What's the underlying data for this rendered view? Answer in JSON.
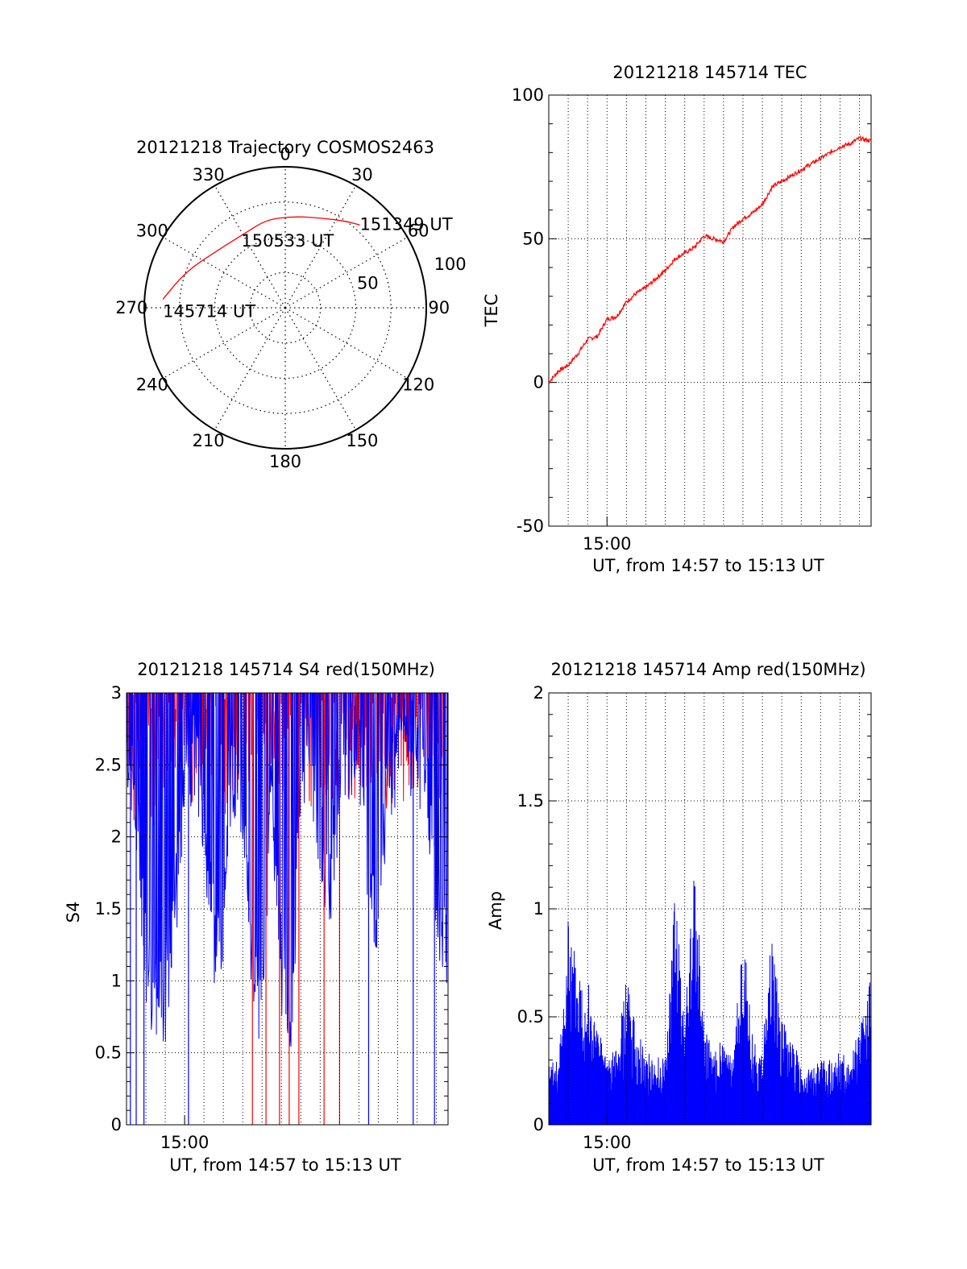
{
  "chart_data": [
    {
      "id": "trajectory",
      "type": "polar",
      "title": "20121218 Trajectory COSMOS2463",
      "azimuth_labels": [
        "0",
        "30",
        "60",
        "90",
        "120",
        "150",
        "180",
        "210",
        "240",
        "270",
        "300",
        "330"
      ],
      "radius_labels": [
        "50",
        "100"
      ],
      "rlim": [
        0,
        100
      ],
      "grid": true,
      "track_color": "#ff0000",
      "track": [
        {
          "az": 274,
          "r": 87
        },
        {
          "az": 290,
          "r": 75
        },
        {
          "az": 310,
          "r": 63
        },
        {
          "az": 330,
          "r": 60
        },
        {
          "az": 348,
          "r": 64
        },
        {
          "az": 5,
          "r": 65
        },
        {
          "az": 20,
          "r": 68
        },
        {
          "az": 35,
          "r": 75
        },
        {
          "az": 42,
          "r": 79
        }
      ],
      "annotations": [
        {
          "text": "151349 UT",
          "az": 42,
          "r": 79
        },
        {
          "text": "150533 UT",
          "az": 2,
          "r": 47
        },
        {
          "text": "145714 UT",
          "az": 274,
          "r": 87
        }
      ]
    },
    {
      "id": "tec",
      "type": "line",
      "title": "20121218 145714 TEC",
      "ylabel": "TEC",
      "xlabel": "UT, from 14:57 to 15:13 UT",
      "x_tick_labels": [
        {
          "t": 3,
          "label": "15:00"
        }
      ],
      "xlim": [
        0,
        16.6
      ],
      "ylim": [
        -50,
        100
      ],
      "y_ticks": [
        "-50",
        "0",
        "50",
        "100"
      ],
      "color": "#ff0000",
      "grid": true,
      "series": [
        {
          "x": [
            0,
            0.5,
            1,
            1.5,
            2,
            2.5,
            3,
            3.5,
            4,
            4.5,
            5,
            5.5,
            6,
            6.5,
            7,
            7.5,
            8,
            8.5,
            9,
            9.5,
            10,
            10.5,
            11,
            11.5,
            12,
            12.5,
            13,
            13.5,
            14,
            14.5,
            15,
            15.5,
            16,
            16.6
          ],
          "y": [
            0,
            4,
            6,
            10,
            15,
            16,
            22,
            23,
            28,
            31,
            33,
            36,
            39,
            43,
            45,
            47,
            51,
            50,
            49,
            54,
            57,
            59,
            62,
            68,
            70,
            72,
            74,
            76,
            78,
            80,
            82,
            83,
            85,
            84
          ]
        }
      ]
    },
    {
      "id": "s4",
      "type": "line",
      "title": "20121218 145714 S4 red(150MHz)",
      "ylabel": "S4",
      "xlabel": "UT, from 14:57 to 15:13 UT",
      "x_tick_labels": [
        {
          "t": 3,
          "label": "15:00"
        }
      ],
      "xlim": [
        0,
        16.6
      ],
      "ylim": [
        0,
        3
      ],
      "y_ticks": [
        "0",
        "0.5",
        "1",
        "1.5",
        "2",
        "2.5",
        "3"
      ],
      "grid": true,
      "series": [
        {
          "name": "",
          "color": "#0000ff",
          "x": [
            0,
            0.5,
            1,
            1.5,
            2,
            2.5,
            3,
            3.5,
            4,
            4.5,
            5,
            5.5,
            6,
            6.5,
            7,
            7.5,
            8,
            8.5,
            9,
            9.5,
            10,
            10.5,
            11,
            11.5,
            12,
            12.5,
            13,
            13.5,
            14,
            14.5,
            15,
            15.5,
            16,
            16.6
          ],
          "y": [
            2.7,
            2.3,
            1.1,
            0.9,
            0.85,
            1.5,
            2.4,
            2.6,
            2.1,
            1.3,
            1.4,
            2.5,
            2.2,
            1.2,
            0.7,
            2.3,
            1.1,
            0.75,
            2.5,
            2.6,
            2.0,
            1.6,
            2.4,
            2.6,
            2.7,
            1.7,
            1.5,
            2.4,
            2.6,
            2.7,
            2.5,
            2.4,
            1.6,
            1.1
          ]
        },
        {
          "name": "",
          "color": "#ff0000",
          "x": [
            0,
            0.5,
            1,
            1.5,
            2,
            2.5,
            3,
            3.5,
            4,
            4.5,
            5,
            5.5,
            6,
            6.5,
            7,
            7.5,
            8,
            8.5,
            9,
            9.5,
            10,
            10.5,
            11,
            11.5,
            12,
            12.5,
            13,
            13.5,
            14,
            14.5,
            15,
            15.5,
            16,
            16.6
          ],
          "y": [
            2.9,
            2.5,
            2.7,
            2.6,
            2.8,
            2.9,
            2.7,
            2.8,
            2.7,
            2.9,
            2.6,
            2.8,
            2.7,
            2.8,
            2.9,
            2.7,
            2.8,
            2.6,
            2.9,
            2.7,
            2.8,
            2.6,
            2.9,
            2.8,
            2.7,
            2.8,
            2.9,
            2.7,
            2.6,
            2.8,
            2.9,
            2.7,
            2.8,
            2.6
          ]
        }
      ],
      "red_dropouts": [
        6.5,
        7.2,
        7.9,
        8.4,
        8.9,
        10.2,
        11.0
      ],
      "blue_dropouts": [
        0.2,
        0.5,
        0.9,
        3.2,
        12.5,
        14.8,
        15.9
      ]
    },
    {
      "id": "amp",
      "type": "bar",
      "title": "20121218 145714 Amp red(150MHz)",
      "ylabel": "Amp",
      "xlabel": "UT, from 14:57 to 15:13 UT",
      "x_tick_labels": [
        {
          "t": 3,
          "label": "15:00"
        }
      ],
      "xlim": [
        0,
        16.6
      ],
      "ylim": [
        0,
        2
      ],
      "y_ticks": [
        "0",
        "0.5",
        "1",
        "1.5",
        "2"
      ],
      "color": "#0000ff",
      "grid": true,
      "series": [
        {
          "x": [
            0,
            0.5,
            1,
            1.5,
            2,
            2.5,
            3,
            3.5,
            4,
            4.5,
            5,
            5.5,
            6,
            6.5,
            7,
            7.5,
            8,
            8.5,
            9,
            9.5,
            10,
            10.5,
            11,
            11.5,
            12,
            12.5,
            13,
            13.5,
            14,
            14.5,
            15,
            15.5,
            16,
            16.6
          ],
          "y": [
            0.3,
            0.3,
            0.95,
            0.8,
            0.7,
            0.45,
            0.35,
            0.35,
            0.7,
            0.45,
            0.35,
            0.3,
            0.35,
            1.1,
            0.45,
            1.3,
            0.45,
            0.35,
            0.4,
            0.3,
            0.95,
            0.4,
            0.35,
            0.95,
            0.5,
            0.4,
            0.3,
            0.25,
            0.3,
            0.3,
            0.35,
            0.3,
            0.45,
            0.7
          ]
        }
      ]
    }
  ]
}
